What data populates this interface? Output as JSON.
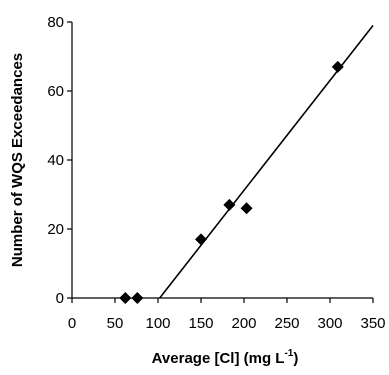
{
  "chart_data": {
    "type": "scatter",
    "title": "",
    "xlabel": {
      "main": "Average [Cl] (mg L",
      "superscript": "-1",
      "end": ")"
    },
    "ylabel": "Number of WQS Exceedances",
    "xlim": [
      0,
      350
    ],
    "ylim": [
      0,
      80
    ],
    "x_ticks": [
      {
        "value": 0,
        "label": "0"
      },
      {
        "value": 50,
        "label": "50"
      },
      {
        "value": 100,
        "label": "100"
      },
      {
        "value": 150,
        "label": "150"
      },
      {
        "value": 200,
        "label": "200"
      },
      {
        "value": 250,
        "label": "250"
      },
      {
        "value": 300,
        "label": "300"
      },
      {
        "value": 350,
        "label": "350"
      }
    ],
    "y_ticks": [
      {
        "value": 0,
        "label": "0"
      },
      {
        "value": 20,
        "label": "20"
      },
      {
        "value": 40,
        "label": "40"
      },
      {
        "value": 60,
        "label": "60"
      },
      {
        "value": 80,
        "label": "80"
      }
    ],
    "grid": false,
    "legend": "none",
    "series": [
      {
        "marker": "diamond",
        "color": "#000000",
        "points": [
          {
            "x": 62,
            "y": 0
          },
          {
            "x": 76,
            "y": 0
          },
          {
            "x": 150,
            "y": 17
          },
          {
            "x": 183,
            "y": 27
          },
          {
            "x": 203,
            "y": 26
          },
          {
            "x": 309,
            "y": 67
          }
        ]
      }
    ],
    "trendline": {
      "type": "linear",
      "color": "#000000",
      "x_start": 102,
      "y_start": 0,
      "x_end": 350,
      "y_end": 79
    }
  }
}
